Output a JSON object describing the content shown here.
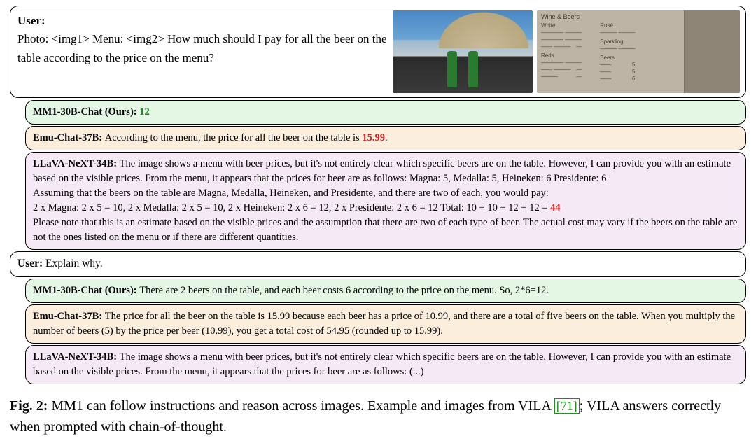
{
  "colors": {
    "mm1_bg": "#e4f6e4",
    "emu_bg": "#fbeedd",
    "llava_bg": "#f6e9f6",
    "correct": "#178a17",
    "wrong": "#d42020",
    "border": "#000000",
    "cite_border": "#1a8f1a"
  },
  "user_top": {
    "label": "User:",
    "body": "Photo: <img1> Menu: <img2> How much should I pay for all the beer on the table according to the price on the menu?"
  },
  "menu_placeholder": {
    "title": "Wine & Beers",
    "white_label": "White",
    "rose_label": "Rosé",
    "sparkling_label": "Sparkling",
    "reds_label": "Reds",
    "beers_label": "Beers",
    "rows_left": [
      [
        "———— ——, ——",
        "——"
      ],
      [
        "———— ————, —",
        "——"
      ],
      [
        "—— —— ——, ———",
        "——"
      ]
    ],
    "rows_reds": [
      [
        "———— ———, ——",
        "——"
      ],
      [
        "—— ——, ——— ——",
        "——"
      ],
      [
        "———, —— ——",
        "——"
      ]
    ],
    "rows_right": [
      [
        "———— ——",
        "—"
      ]
    ],
    "rows_sparkling": [
      [
        "——— ——",
        "—"
      ]
    ],
    "rows_beers": [
      [
        "——",
        "5"
      ],
      [
        "——",
        "5"
      ],
      [
        "——",
        "6"
      ],
      [
        "——",
        "6"
      ]
    ]
  },
  "turns1": {
    "mm1": {
      "label": "MM1-30B-Chat (Ours): ",
      "answer": "12"
    },
    "emu": {
      "label": "Emu-Chat-37B: ",
      "body_pre": "According to the menu, the price for all the beer on the table is ",
      "answer": "15.99",
      "body_post": "."
    },
    "llava": {
      "label": "LLaVA-NeXT-34B: ",
      "p1": "The image shows a menu with beer prices, but it's not entirely clear which specific beers are on the table. However, I can provide you with an estimate based on the visible prices. From the menu, it appears that the prices for beer are as follows: Magna: 5, Medalla: 5, Heineken: 6 Presidente: 6",
      "p2": "Assuming that the beers on the table are Magna, Medalla, Heineken, and Presidente, and there are two of each, you would pay:",
      "p3_pre": "2 x Magna: 2 x 5 = 10, 2 x Medalla: 2 x 5 = 10, 2 x Heineken: 2 x 6 = 12, 2 x Presidente: 2 x 6 = 12 Total: 10 + 10 + 12 + 12 = ",
      "p3_ans": "44",
      "p4": "Please note that this is an estimate based on the visible prices and the assumption that there are two of each type of beer. The actual cost may vary if the beers on the table are not the ones listed on the menu or if there are different quantities."
    }
  },
  "user2": {
    "label": "User: ",
    "body": "Explain why."
  },
  "turns2": {
    "mm1": {
      "label": "MM1-30B-Chat (Ours): ",
      "body": "There are 2 beers on the table, and each beer costs 6 according to the price on the menu. So, 2*6=12."
    },
    "emu": {
      "label": "Emu-Chat-37B: ",
      "body": "The price for all the beer on the table is 15.99 because each beer has a price of 10.99, and there are a total of five beers on the table. When you multiply the number of beers (5) by the price per beer (10.99), you get a total cost of 54.95 (rounded up to 15.99)."
    },
    "llava": {
      "label": "LLaVA-NeXT-34B: ",
      "body": "The image shows a menu with beer prices, but it's not entirely clear which specific beers are on the table. However, I can provide you with an estimate based on the visible prices. From the menu, it appears that the prices for beer are as follows: (...)"
    }
  },
  "caption": {
    "figlabel": "Fig. 2:",
    "text_a": " MM1 can follow instructions and reason across images. Example and images from VILA ",
    "cite": "[71]",
    "text_b": "; VILA answers correctly when prompted with chain-of-thought."
  }
}
